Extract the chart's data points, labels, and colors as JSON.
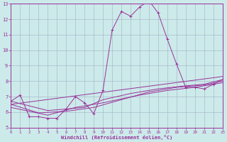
{
  "xlabel": "Windchill (Refroidissement éolien,°C)",
  "background_color": "#cceaea",
  "grid_color": "#aabbcc",
  "line_color": "#993399",
  "xlim": [
    0,
    23
  ],
  "ylim": [
    5,
    13
  ],
  "xticks": [
    0,
    1,
    2,
    3,
    4,
    5,
    6,
    7,
    8,
    9,
    10,
    11,
    12,
    13,
    14,
    15,
    16,
    17,
    18,
    19,
    20,
    21,
    22,
    23
  ],
  "yticks": [
    5,
    6,
    7,
    8,
    9,
    10,
    11,
    12,
    13
  ],
  "series": [
    [
      0,
      6.7
    ],
    [
      1,
      7.1
    ],
    [
      2,
      5.7
    ],
    [
      3,
      5.7
    ],
    [
      4,
      5.6
    ],
    [
      5,
      5.6
    ],
    [
      6,
      6.2
    ],
    [
      7,
      7.0
    ],
    [
      8,
      6.6
    ],
    [
      9,
      5.9
    ],
    [
      10,
      7.4
    ],
    [
      11,
      11.3
    ],
    [
      12,
      12.5
    ],
    [
      13,
      12.2
    ],
    [
      14,
      12.8
    ],
    [
      15,
      13.2
    ],
    [
      16,
      12.4
    ],
    [
      17,
      10.7
    ],
    [
      18,
      9.1
    ],
    [
      19,
      7.6
    ],
    [
      20,
      7.6
    ],
    [
      21,
      7.5
    ],
    [
      22,
      7.8
    ],
    [
      23,
      8.1
    ]
  ],
  "regression_line": [
    [
      0,
      6.5
    ],
    [
      23,
      8.3
    ]
  ],
  "smooth_line1": [
    [
      0,
      6.7
    ],
    [
      4,
      6.1
    ],
    [
      8,
      6.3
    ],
    [
      10,
      6.8
    ],
    [
      13,
      7.2
    ],
    [
      16,
      7.5
    ],
    [
      19,
      7.7
    ],
    [
      21,
      7.8
    ],
    [
      23,
      8.1
    ]
  ],
  "smooth_line2": [
    [
      0,
      6.5
    ],
    [
      3,
      5.95
    ],
    [
      6,
      6.05
    ],
    [
      9,
      6.3
    ],
    [
      12,
      6.8
    ],
    [
      15,
      7.3
    ],
    [
      18,
      7.6
    ],
    [
      21,
      7.75
    ],
    [
      23,
      8.0
    ]
  ],
  "smooth_line3": [
    [
      0,
      6.3
    ],
    [
      4,
      5.8
    ],
    [
      7,
      6.3
    ],
    [
      10,
      6.6
    ],
    [
      14,
      7.1
    ],
    [
      17,
      7.4
    ],
    [
      20,
      7.6
    ],
    [
      23,
      7.9
    ]
  ]
}
